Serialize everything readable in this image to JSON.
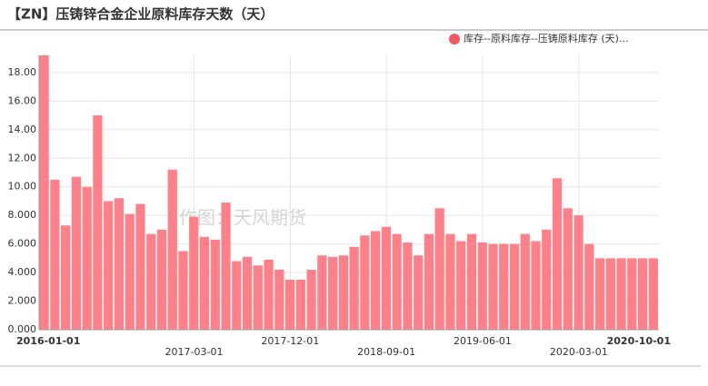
{
  "chart_data": {
    "type": "bar",
    "title": "【ZN】压铸锌合金企业原料库存天数（天）",
    "watermark": "作图：天风期货",
    "categories": [
      "2016-01-01",
      null,
      null,
      null,
      null,
      null,
      null,
      null,
      null,
      null,
      null,
      null,
      null,
      null,
      "2017-03-01",
      null,
      null,
      null,
      null,
      null,
      null,
      null,
      null,
      "2017-12-01",
      null,
      null,
      null,
      null,
      null,
      null,
      null,
      null,
      "2018-09-01",
      null,
      null,
      null,
      null,
      null,
      null,
      null,
      null,
      "2019-06-01",
      null,
      null,
      null,
      null,
      null,
      null,
      null,
      null,
      "2020-03-01",
      null,
      null,
      null,
      null,
      null,
      null,
      "2020-10-01"
    ],
    "series": [
      {
        "name": "库存--原料库存--压铸原料库存 (天)...",
        "color": "#ff8088",
        "legend_color": "#f0595f",
        "values": [
          19.2,
          10.5,
          7.3,
          10.7,
          10.0,
          15.0,
          9.0,
          9.2,
          8.1,
          8.8,
          6.7,
          7.0,
          11.2,
          5.5,
          7.9,
          6.5,
          6.3,
          8.9,
          4.8,
          5.1,
          4.5,
          4.9,
          4.2,
          3.5,
          3.5,
          4.2,
          5.2,
          5.1,
          5.2,
          5.8,
          6.6,
          6.9,
          7.2,
          6.7,
          6.1,
          5.2,
          6.7,
          8.5,
          6.7,
          6.2,
          6.7,
          6.1,
          6.0,
          6.0,
          6.0,
          6.7,
          6.2,
          7.0,
          10.6,
          8.5,
          8.0,
          6.0,
          5.0,
          5.0,
          5.0,
          5.0,
          5.0,
          5.0
        ]
      }
    ],
    "ylim": [
      0,
      19.2
    ],
    "yticks": [
      {
        "value": 0,
        "label": "0.000"
      },
      {
        "value": 2,
        "label": "2.000"
      },
      {
        "value": 4,
        "label": "4.000"
      },
      {
        "value": 6,
        "label": "6.000"
      },
      {
        "value": 8,
        "label": "8.000"
      },
      {
        "value": 10,
        "label": "10.00"
      },
      {
        "value": 12,
        "label": "12.00"
      },
      {
        "value": 14,
        "label": "14.00"
      },
      {
        "value": 16,
        "label": "16.00"
      },
      {
        "value": 18,
        "label": "18.00"
      }
    ],
    "grid": true
  }
}
